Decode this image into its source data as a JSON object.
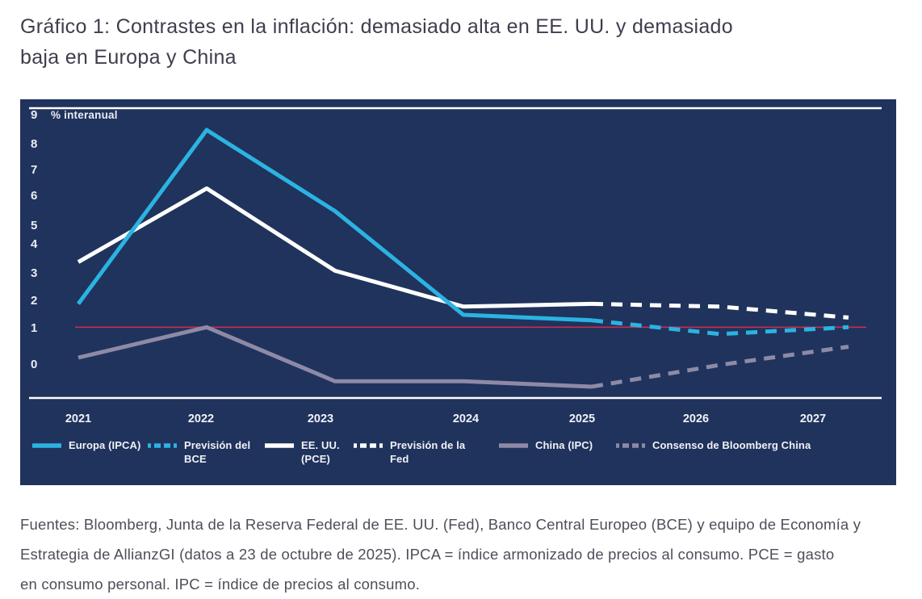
{
  "title": "Gráfico 1: Contrastes en la inflación: demasiado alta en EE. UU. y demasiado\nbaja en Europa y China",
  "footer": "Fuentes: Bloomberg, Junta de la Reserva Federal de EE. UU. (Fed), Banco Central Europeo (BCE) y equipo de Economía y\nEstrategia de AllianzGI (datos a 23 de octubre de 2025). IPCA = índice armonizado de precios al consumo. PCE = gasto\nen consumo personal. IPC = índice de precios al consumo.",
  "colors": {
    "panel_background": "#20335c",
    "europe": "#2bb3e2",
    "us": "#ffffff",
    "china": "#8e8aa6",
    "reference_line": "#c62d52",
    "axis_text": "#e9ecf3",
    "title_text": "#3e3e4d",
    "footer_text": "#4e4e59"
  },
  "chart_data": {
    "type": "line",
    "unit_label": "% interanual",
    "x_years": [
      "2021",
      "2022",
      "2023",
      "2024",
      "2025",
      "2026",
      "2027"
    ],
    "y_ticks": [
      9,
      8,
      7,
      6,
      5,
      4,
      3,
      2,
      1,
      0
    ],
    "ylim": [
      -1.2,
      9.3
    ],
    "grid": false,
    "legend_position": "bottom",
    "reference_line": {
      "value": 1.05,
      "color": "#c62d52"
    },
    "series": [
      {
        "name": "Europa (IPCA)",
        "color": "#2bb3e2",
        "dash": false,
        "years": [
          2021,
          2022,
          2023,
          2024,
          2025
        ],
        "values": [
          1.9,
          8.5,
          5.5,
          1.5,
          1.3
        ]
      },
      {
        "name": "Previsión del BCE",
        "color": "#2bb3e2",
        "dash": true,
        "years": [
          2025,
          2026,
          2027
        ],
        "values": [
          1.3,
          0.85,
          1.05
        ]
      },
      {
        "name": "EE. UU. (PCE)",
        "color": "#ffffff",
        "dash": false,
        "years": [
          2021,
          2022,
          2023,
          2024,
          2025
        ],
        "values": [
          3.4,
          6.3,
          3.1,
          1.8,
          1.9
        ]
      },
      {
        "name": "Previsión de la Fed",
        "color": "#ffffff",
        "dash": true,
        "years": [
          2025,
          2026,
          2027
        ],
        "values": [
          1.9,
          1.8,
          1.4
        ]
      },
      {
        "name": "China (IPC)",
        "color": "#8e8aa6",
        "dash": false,
        "years": [
          2021,
          2022,
          2023,
          2024,
          2025
        ],
        "values": [
          0.2,
          1.05,
          -0.45,
          -0.45,
          -0.6
        ]
      },
      {
        "name": "Consenso de Bloomberg China",
        "color": "#8e8aa6",
        "dash": true,
        "years": [
          2025,
          2026,
          2027
        ],
        "values": [
          -0.6,
          0.0,
          0.5
        ]
      }
    ],
    "legend": [
      {
        "label": "Europa (IPCA)",
        "color": "#2bb3e2",
        "dash": false
      },
      {
        "label": "Previsión del\nBCE",
        "color": "#2bb3e2",
        "dash": true
      },
      {
        "label": "EE. UU.\n(PCE)",
        "color": "#ffffff",
        "dash": false
      },
      {
        "label": "Previsión de la\nFed",
        "color": "#ffffff",
        "dash": true
      },
      {
        "label": "China (IPC)",
        "color": "#8e8aa6",
        "dash": false
      },
      {
        "label": "Consenso de Bloomberg China",
        "color": "#8e8aa6",
        "dash": true
      }
    ]
  }
}
